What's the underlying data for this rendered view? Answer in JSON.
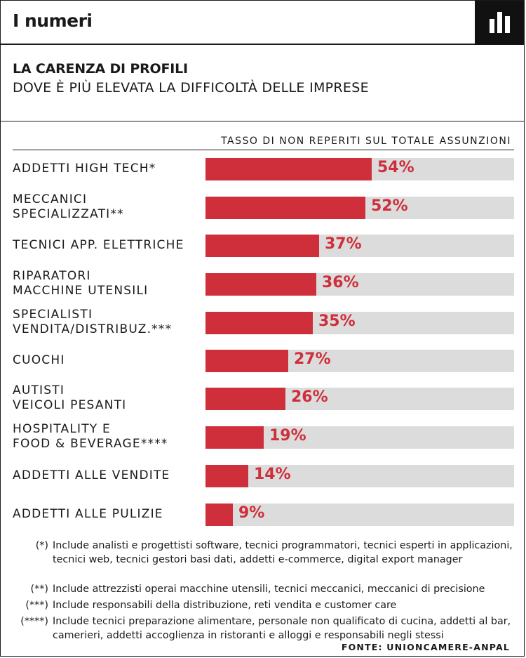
{
  "header": {
    "title": "I numeri",
    "icon": "bar-chart-icon"
  },
  "subtitle": {
    "main": "LA CARENZA DI PROFILI",
    "sub": "DOVE È PIÙ ELEVATA LA DIFFICOLTÀ DELLE IMPRESE"
  },
  "colors": {
    "bar": "#cf2f3a",
    "track": "#dcdcdc",
    "ink": "#1a1a1a"
  },
  "chart_data": {
    "type": "bar",
    "orientation": "horizontal",
    "axis_title": "TASSO DI NON REPERITI SUL TOTALE ASSUNZIONI",
    "ylim": [
      0,
      100
    ],
    "categories": [
      "ADDETTI HIGH TECH*",
      "MECCANICI\nSPECIALIZZATI**",
      "TECNICI APP. ELETTRICHE",
      "RIPARATORI\nMACCHINE UTENSILI",
      "SPECIALISTI\nVENDITA/DISTRIBUZ.***",
      "CUOCHI",
      "AUTISTI\nVEICOLI PESANTI",
      "HOSPITALITY E\nFOOD & BEVERAGE****",
      "ADDETTI ALLE VENDITE",
      "ADDETTI ALLE PULIZIE"
    ],
    "values": [
      54,
      52,
      37,
      36,
      35,
      27,
      26,
      19,
      14,
      9
    ],
    "value_labels": [
      "54%",
      "52%",
      "37%",
      "36%",
      "35%",
      "27%",
      "26%",
      "19%",
      "14%",
      "9%"
    ]
  },
  "notes": [
    {
      "mark": "(*)",
      "text": "Include analisti e progettisti software, tecnici programmatori, tecnici esperti in applicazioni,  tecnici web, tecnici gestori basi dati, addetti e-commerce, digital export manager"
    },
    {
      "mark": "(**)",
      "text": "Include attrezzisti operai macchine utensili, tecnici meccanici, meccanici di precisione"
    },
    {
      "mark": "(***)",
      "text": "Include responsabili della distribuzione, reti vendita e customer care"
    },
    {
      "mark": "(****)",
      "text": "Include tecnici preparazione alimentare, personale non qualificato di cucina, addetti al bar, camerieri, addetti accoglienza in ristoranti e alloggi e responsabili negli stessi"
    }
  ],
  "source": "FONTE: UNIONCAMERE-ANPAL"
}
